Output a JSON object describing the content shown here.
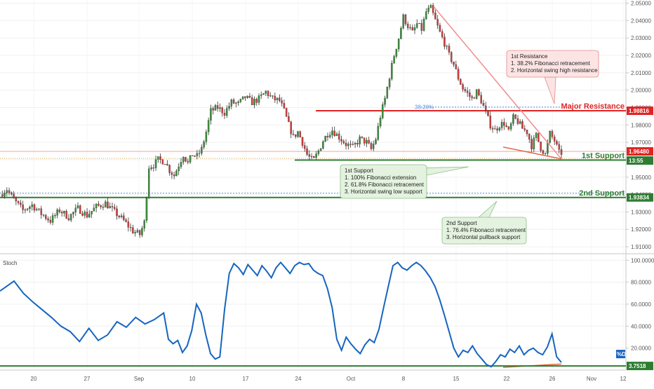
{
  "chart_data": [
    {
      "type": "candlestick",
      "y_axis": {
        "ticks": [
          "2.05000",
          "2.04000",
          "2.03000",
          "2.02000",
          "2.01000",
          "2.00000",
          "1.99000",
          "1.98000",
          "1.97000",
          "1.96000",
          "1.95000",
          "1.94000",
          "1.93000",
          "1.92000",
          "1.91000"
        ],
        "range": [
          1.906,
          2.051
        ]
      },
      "x_axis": {
        "ticks": [
          "20",
          "27",
          "Sep",
          "10",
          "17",
          "24",
          "Oct",
          "8",
          "15",
          "22",
          "26",
          "Nov",
          "12"
        ]
      },
      "price_tags": {
        "major_resistance": {
          "value": "1.98816",
          "color": "#e02424"
        },
        "current_price": {
          "value": "1.96480",
          "color": "#e02424"
        },
        "countdown": {
          "value": "13:55",
          "color": "#2e7d32"
        },
        "second_support": {
          "value": "1.93834",
          "color": "#2e7d32"
        }
      },
      "levels": {
        "major_resistance": {
          "label": "Major Resistance",
          "value": 1.98816,
          "color": "#e02424"
        },
        "first_support": {
          "label": "1st Support",
          "value": 1.9598,
          "color": "#2e7d32"
        },
        "second_support": {
          "label": "2nd Support",
          "value": 1.9383,
          "color": "#2e7d32"
        },
        "fib_level": {
          "label": "38.20%",
          "value": 1.9903
        }
      },
      "annotations": {
        "first_resistance": {
          "lines": [
            "1st Resistance",
            "1. 38.2% Fibonacci retracement",
            "2. Horizontal swing high resistance"
          ]
        },
        "first_support": {
          "lines": [
            "1st Support",
            "1. 100% Fibonacci extension",
            "2. 61.8% Fibonacci retracement",
            "3. Horizontal swing low support"
          ]
        },
        "second_support": {
          "lines": [
            "2nd Support",
            "1. 76.4% Fibonacci retracement",
            "3. Horizontal pullback support"
          ]
        }
      },
      "price_path": [
        [
          0,
          1.94
        ],
        [
          3,
          1.943
        ],
        [
          6,
          1.937
        ],
        [
          10,
          1.931
        ],
        [
          14,
          1.934
        ],
        [
          18,
          1.929
        ],
        [
          22,
          1.925
        ],
        [
          26,
          1.931
        ],
        [
          30,
          1.927
        ],
        [
          34,
          1.932
        ],
        [
          38,
          1.928
        ],
        [
          42,
          1.933
        ],
        [
          46,
          1.935
        ],
        [
          50,
          1.93
        ],
        [
          54,
          1.925
        ],
        [
          58,
          1.919
        ],
        [
          61,
          1.917
        ],
        [
          63,
          1.924
        ],
        [
          64,
          1.94
        ],
        [
          65,
          1.956
        ],
        [
          67,
          1.957
        ],
        [
          69,
          1.96
        ],
        [
          72,
          1.959
        ],
        [
          74,
          1.954
        ],
        [
          76,
          1.951
        ],
        [
          78,
          1.957
        ],
        [
          80,
          1.963
        ],
        [
          82,
          1.958
        ],
        [
          84,
          1.963
        ],
        [
          86,
          1.962
        ],
        [
          88,
          1.966
        ],
        [
          90,
          1.976
        ],
        [
          92,
          1.988
        ],
        [
          95,
          1.99
        ],
        [
          98,
          1.987
        ],
        [
          101,
          1.993
        ],
        [
          104,
          1.992
        ],
        [
          107,
          1.996
        ],
        [
          110,
          1.993
        ],
        [
          113,
          1.995
        ],
        [
          116,
          1.999
        ],
        [
          119,
          1.995
        ],
        [
          122,
          1.994
        ],
        [
          124,
          1.988
        ],
        [
          126,
          1.98
        ],
        [
          128,
          1.973
        ],
        [
          130,
          1.976
        ],
        [
          132,
          1.97
        ],
        [
          134,
          1.963
        ],
        [
          136,
          1.96
        ],
        [
          137,
          1.96
        ],
        [
          139,
          1.965
        ],
        [
          141,
          1.971
        ],
        [
          143,
          1.975
        ],
        [
          145,
          1.977
        ],
        [
          148,
          1.973
        ],
        [
          151,
          1.969
        ],
        [
          154,
          1.967
        ],
        [
          157,
          1.972
        ],
        [
          160,
          1.97
        ],
        [
          162,
          1.966
        ],
        [
          164,
          1.972
        ],
        [
          166,
          1.985
        ],
        [
          168,
          1.995
        ],
        [
          170,
          2.008
        ],
        [
          172,
          2.02
        ],
        [
          174,
          2.03
        ],
        [
          176,
          2.042
        ],
        [
          178,
          2.037
        ],
        [
          180,
          2.033
        ],
        [
          182,
          2.038
        ],
        [
          184,
          2.035
        ],
        [
          186,
          2.045
        ],
        [
          188,
          2.047
        ],
        [
          190,
          2.04
        ],
        [
          192,
          2.033
        ],
        [
          194,
          2.027
        ],
        [
          196,
          2.02
        ],
        [
          198,
          2.015
        ],
        [
          200,
          2.007
        ],
        [
          202,
          2.001
        ],
        [
          204,
          1.998
        ],
        [
          206,
          1.995
        ],
        [
          208,
          1.999
        ],
        [
          210,
          1.994
        ],
        [
          212,
          1.987
        ],
        [
          214,
          1.98
        ],
        [
          216,
          1.977
        ],
        [
          218,
          1.98
        ],
        [
          220,
          1.981
        ],
        [
          222,
          1.976
        ],
        [
          224,
          1.984
        ],
        [
          226,
          1.982
        ],
        [
          228,
          1.978
        ],
        [
          230,
          1.976
        ],
        [
          232,
          1.968
        ],
        [
          234,
          1.974
        ],
        [
          236,
          1.967
        ],
        [
          238,
          1.963
        ],
        [
          240,
          1.975
        ],
        [
          242,
          1.971
        ],
        [
          244,
          1.964
        ],
        [
          245,
          1.964
        ]
      ]
    },
    {
      "type": "line",
      "title": "Stoch",
      "y_axis": {
        "ticks": [
          "100.0000",
          "80.0000",
          "60.0000",
          "40.0000",
          "20.0000"
        ],
        "range": [
          0,
          104
        ]
      },
      "last_value": {
        "value": "3.7518",
        "color": "#2e7d32"
      },
      "badge": {
        "text": "%D",
        "color": "#1565c0"
      },
      "level": 3.7518,
      "series": [
        {
          "color": "#1565c0",
          "points": [
            [
              0,
              72
            ],
            [
              3,
              81
            ],
            [
              5,
              70
            ],
            [
              7,
              62
            ],
            [
              9,
              55
            ],
            [
              11,
              48
            ],
            [
              13,
              40
            ],
            [
              15,
              35
            ],
            [
              17,
              26
            ],
            [
              19,
              38
            ],
            [
              21,
              27
            ],
            [
              23,
              32
            ],
            [
              25,
              44
            ],
            [
              27,
              39
            ],
            [
              29,
              48
            ],
            [
              31,
              42
            ],
            [
              33,
              46
            ],
            [
              35,
              52
            ],
            [
              36,
              28
            ],
            [
              37,
              24
            ],
            [
              38,
              27
            ],
            [
              39,
              16
            ],
            [
              40,
              22
            ],
            [
              41,
              36
            ],
            [
              42,
              60
            ],
            [
              43,
              52
            ],
            [
              44,
              32
            ],
            [
              45,
              15
            ],
            [
              46,
              10
            ],
            [
              47,
              12
            ],
            [
              48,
              55
            ],
            [
              49,
              88
            ],
            [
              50,
              97
            ],
            [
              51,
              93
            ],
            [
              52,
              87
            ],
            [
              53,
              96
            ],
            [
              54,
              91
            ],
            [
              55,
              86
            ],
            [
              56,
              95
            ],
            [
              57,
              90
            ],
            [
              58,
              84
            ],
            [
              59,
              93
            ],
            [
              60,
              98
            ],
            [
              61,
              93
            ],
            [
              62,
              88
            ],
            [
              63,
              95
            ],
            [
              64,
              98
            ],
            [
              65,
              96
            ],
            [
              66,
              97
            ],
            [
              67,
              91
            ],
            [
              68,
              88
            ],
            [
              69,
              86
            ],
            [
              70,
              74
            ],
            [
              71,
              57
            ],
            [
              72,
              28
            ],
            [
              73,
              18
            ],
            [
              74,
              30
            ],
            [
              75,
              24
            ],
            [
              76,
              19
            ],
            [
              77,
              15
            ],
            [
              78,
              23
            ],
            [
              79,
              28
            ],
            [
              80,
              25
            ],
            [
              81,
              37
            ],
            [
              82,
              57
            ],
            [
              83,
              76
            ],
            [
              84,
              95
            ],
            [
              85,
              98
            ],
            [
              86,
              93
            ],
            [
              87,
              91
            ],
            [
              88,
              95
            ],
            [
              89,
              98
            ],
            [
              90,
              95
            ],
            [
              91,
              90
            ],
            [
              92,
              84
            ],
            [
              93,
              76
            ],
            [
              94,
              64
            ],
            [
              95,
              50
            ],
            [
              96,
              35
            ],
            [
              97,
              20
            ],
            [
              98,
              12
            ],
            [
              99,
              18
            ],
            [
              100,
              16
            ],
            [
              101,
              22
            ],
            [
              102,
              15
            ],
            [
              103,
              10
            ],
            [
              104,
              5
            ],
            [
              105,
              3
            ],
            [
              106,
              8
            ],
            [
              107,
              14
            ],
            [
              108,
              12
            ],
            [
              109,
              19
            ],
            [
              110,
              16
            ],
            [
              111,
              22
            ],
            [
              112,
              14
            ],
            [
              113,
              18
            ],
            [
              114,
              20
            ],
            [
              115,
              16
            ],
            [
              116,
              14
            ],
            [
              117,
              21
            ],
            [
              118,
              33
            ],
            [
              119,
              12
            ],
            [
              120,
              7
            ]
          ]
        }
      ]
    }
  ]
}
